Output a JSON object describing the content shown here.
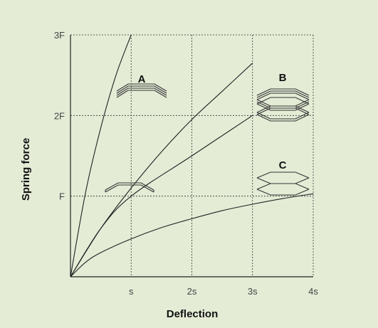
{
  "chart_data": {
    "type": "line",
    "xlabel": "Deflection",
    "ylabel": "Spring force",
    "x_ticks": [
      "s",
      "2s",
      "3s",
      "4s"
    ],
    "y_ticks": [
      "F",
      "2F",
      "3F"
    ],
    "xlim": [
      0,
      4
    ],
    "ylim": [
      0,
      3
    ],
    "grid": true,
    "stack_labels": [
      "A",
      "B",
      "C"
    ],
    "series": [
      {
        "x": [
          0,
          0.25,
          0.5,
          0.75,
          1.0
        ],
        "y": [
          0,
          1.05,
          1.85,
          2.5,
          3.0
        ]
      },
      {
        "x": [
          0,
          0.5,
          1.0,
          1.5,
          2.0,
          2.5,
          3.0
        ],
        "y": [
          0,
          0.6,
          1.1,
          1.55,
          1.95,
          2.3,
          2.65
        ]
      },
      {
        "x": [
          0,
          0.5,
          1.0,
          2.0,
          3.0
        ],
        "y": [
          0,
          0.6,
          1.0,
          1.5,
          2.0
        ]
      },
      {
        "x": [
          0,
          0.25,
          0.5,
          1.0,
          1.5,
          2.0,
          2.5,
          3.0,
          3.5,
          4.0
        ],
        "y": [
          0,
          0.18,
          0.3,
          0.47,
          0.61,
          0.72,
          0.82,
          0.9,
          0.97,
          1.03
        ]
      }
    ]
  }
}
